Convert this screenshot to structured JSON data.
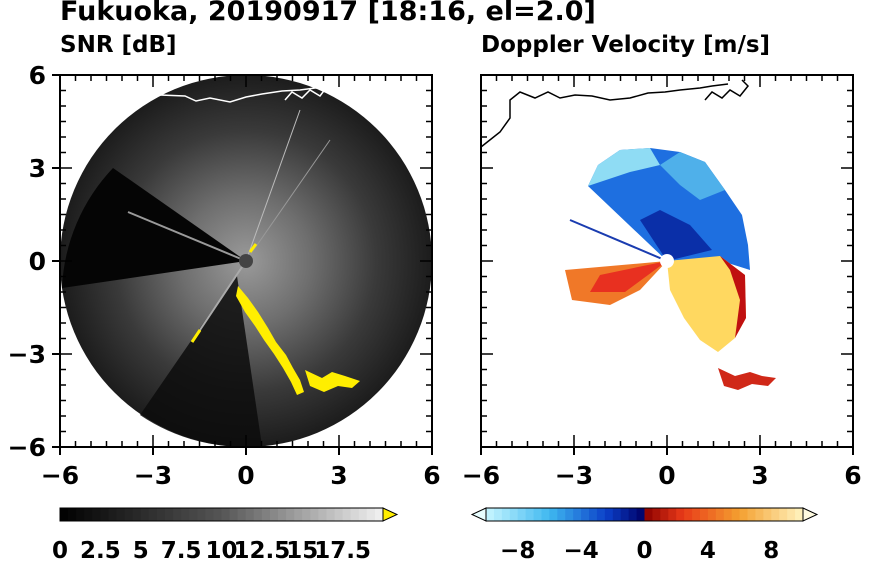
{
  "title": "Fukuoka, 20190917 [18:16, el=2.0]",
  "panels": [
    {
      "title": "SNR [dB]"
    },
    {
      "title": "Doppler Velocity [m/s]"
    }
  ],
  "colors": {
    "coast": "#ffffff",
    "coast_right": "#000000",
    "snr_high": "#ffee00",
    "radar_center": "#444444"
  },
  "chart_data": [
    {
      "type": "heatmap",
      "title": "SNR [dB]",
      "xlim": [
        -6,
        6
      ],
      "ylim": [
        -6,
        6
      ],
      "xticks": [
        "−6",
        "−3",
        "0",
        "3",
        "6"
      ],
      "yticks": [
        "6",
        "3",
        "0",
        "−3",
        "−6"
      ],
      "colorbar": {
        "range": [
          0,
          20
        ],
        "tick_values": [
          0,
          2.5,
          5,
          7.5,
          10,
          12.5,
          15,
          17.5
        ],
        "tick_labels": [
          "0",
          "2.5",
          "5",
          "7.5",
          "10",
          "12.5",
          "15",
          "17.5"
        ],
        "extend": "max"
      }
    },
    {
      "type": "heatmap",
      "title": "Doppler Velocity [m/s]",
      "xlim": [
        -6,
        6
      ],
      "ylim": [
        -6,
        6
      ],
      "xticks": [
        "−6",
        "−3",
        "0",
        "3",
        "6"
      ],
      "yticks": [],
      "colorbar": {
        "range": [
          -10,
          10
        ],
        "tick_values": [
          -8,
          -4,
          0,
          4,
          8
        ],
        "tick_labels": [
          "−8",
          "−4",
          "0",
          "4",
          "8"
        ],
        "extend": "both"
      }
    }
  ]
}
